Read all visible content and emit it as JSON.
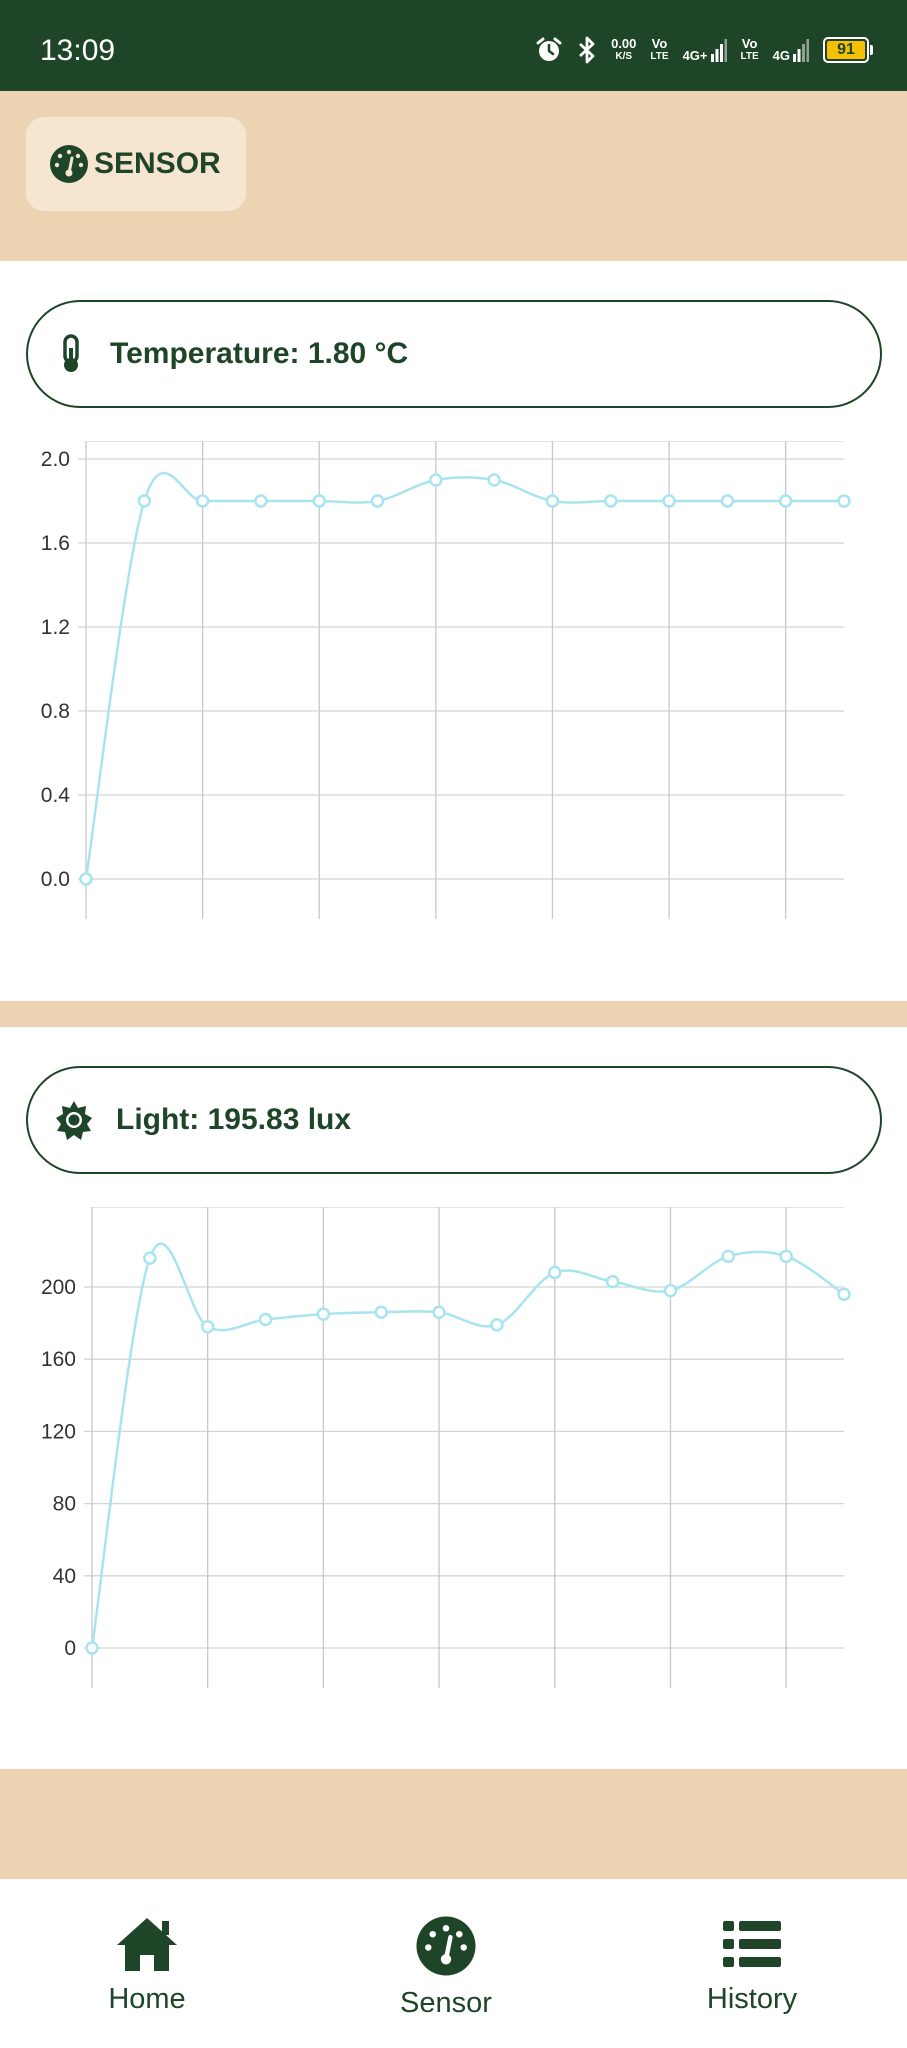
{
  "status_bar": {
    "time": "13:09",
    "net_speed_value": "0.00",
    "net_speed_unit": "K/S",
    "sim1_vo": "Vo",
    "sim1_lte": "LTE",
    "sim1_net": "4G+",
    "sim2_vo": "Vo",
    "sim2_lte": "LTE",
    "sim2_net": "4G",
    "battery_level": "91",
    "icons": [
      "alarm-icon",
      "bluetooth-icon",
      "signal-icon",
      "battery-icon"
    ]
  },
  "header": {
    "title": "SENSOR",
    "icon": "gauge-icon"
  },
  "temperature": {
    "label": "Temperature: 1.80 °C",
    "icon": "thermometer-icon"
  },
  "light": {
    "label": "Light: 195.83 lux",
    "icon": "sun-icon"
  },
  "colors": {
    "primary": "#1f4528",
    "header_bg": "#ecd4b2",
    "chip_bg": "#f5e5d1",
    "series_line": "#a8e4f0"
  },
  "bottom_nav": {
    "items": [
      {
        "label": "Home",
        "icon": "home-icon"
      },
      {
        "label": "Sensor",
        "icon": "gauge-icon"
      },
      {
        "label": "History",
        "icon": "list-icon"
      }
    ]
  },
  "chart_data": [
    {
      "type": "line",
      "x": [
        0,
        1,
        2,
        3,
        4,
        5,
        6,
        7,
        8,
        9,
        10,
        11,
        12,
        13
      ],
      "series": [
        {
          "values": [
            0.0,
            1.8,
            1.8,
            1.8,
            1.8,
            1.8,
            1.9,
            1.9,
            1.8,
            1.8,
            1.8,
            1.8,
            1.8,
            1.8
          ]
        }
      ],
      "yticks": [
        "0.0",
        "0.4",
        "0.8",
        "1.2",
        "1.6",
        "2.0"
      ],
      "ylim": [
        0,
        2.0
      ],
      "grid": true,
      "smooth": true
    },
    {
      "type": "line",
      "x": [
        0,
        1,
        2,
        3,
        4,
        5,
        6,
        7,
        8,
        9,
        10,
        11,
        12,
        13
      ],
      "series": [
        {
          "values": [
            0,
            216,
            178,
            182,
            185,
            186,
            186,
            179,
            208,
            203,
            198,
            217,
            217,
            196
          ]
        }
      ],
      "yticks": [
        "0",
        "40",
        "80",
        "120",
        "160",
        "200"
      ],
      "ylim": [
        0,
        200
      ],
      "grid": true,
      "smooth": true
    }
  ]
}
